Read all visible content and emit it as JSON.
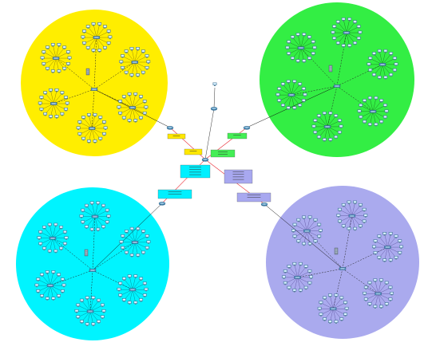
{
  "colors": {
    "background": "#ffffff",
    "zone_yellow": "#ffee00",
    "zone_green": "#33ee44",
    "zone_cyan": "#00f4ff",
    "zone_lavender": "#aaaaee",
    "wan_red": "#e8202a",
    "switch_link": "#111111",
    "pc_link_dash": "#222222",
    "pc_body": "#7fb6d8",
    "pc_screen": "#dff3ff",
    "router": "#5f9fc8",
    "server": "#8a9aaa",
    "label_yellow": "#ffe800",
    "label_green": "#44ee55",
    "label_cyan": "#00f0ff",
    "label_lavender": "#a8a8f0"
  },
  "icons": {
    "pc": "desktop-pc-icon",
    "switch": "switch-icon",
    "router": "router-icon",
    "core_router": "core-router-icon",
    "server": "server-icon"
  },
  "labels": {
    "topology_note": "",
    "yellow_link_note": "",
    "green_link_note": "",
    "cyan_link_note": "",
    "lavender_link_note": ""
  }
}
